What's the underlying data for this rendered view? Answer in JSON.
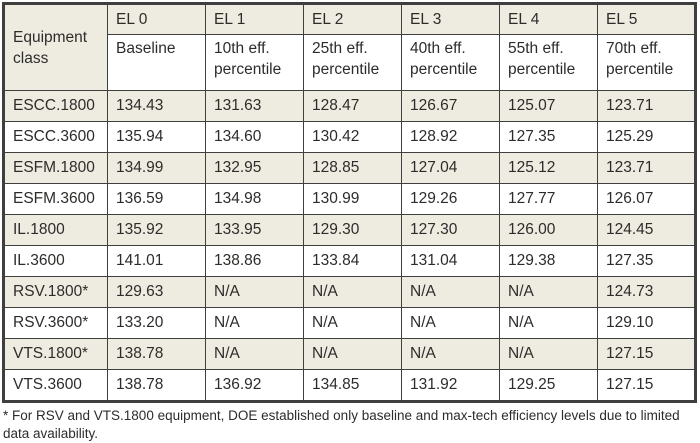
{
  "colors": {
    "row_shade": "#EEECE1",
    "border": "#3F3F3F",
    "text": "#2D2C2A",
    "background": "#FFFFFF"
  },
  "table": {
    "corner_header": "Equipment class",
    "columns": [
      {
        "el": "EL 0",
        "sub": "Baseline"
      },
      {
        "el": "EL 1",
        "sub": "10th eff. percentile"
      },
      {
        "el": "EL 2",
        "sub": "25th eff. percentile"
      },
      {
        "el": "EL 3",
        "sub": "40th eff. percentile"
      },
      {
        "el": "EL 4",
        "sub": "55th eff. percentile"
      },
      {
        "el": "EL 5",
        "sub": "70th eff. percentile"
      }
    ],
    "rows": [
      {
        "equipment_class": "ESCC.1800",
        "values": [
          "134.43",
          "131.63",
          "128.47",
          "126.67",
          "125.07",
          "123.71"
        ]
      },
      {
        "equipment_class": "ESCC.3600",
        "values": [
          "135.94",
          "134.60",
          "130.42",
          "128.92",
          "127.35",
          "125.29"
        ]
      },
      {
        "equipment_class": "ESFM.1800",
        "values": [
          "134.99",
          "132.95",
          "128.85",
          "127.04",
          "125.12",
          "123.71"
        ]
      },
      {
        "equipment_class": "ESFM.3600",
        "values": [
          "136.59",
          "134.98",
          "130.99",
          "129.26",
          "127.77",
          "126.07"
        ]
      },
      {
        "equipment_class": "IL.1800",
        "values": [
          "135.92",
          "133.95",
          "129.30",
          "127.30",
          "126.00",
          "124.45"
        ]
      },
      {
        "equipment_class": "IL.3600",
        "values": [
          "141.01",
          "138.86",
          "133.84",
          "131.04",
          "129.38",
          "127.35"
        ]
      },
      {
        "equipment_class": "RSV.1800*",
        "values": [
          "129.63",
          "N/A",
          "N/A",
          "N/A",
          "N/A",
          "124.73"
        ]
      },
      {
        "equipment_class": "RSV.3600*",
        "values": [
          "133.20",
          "N/A",
          "N/A",
          "N/A",
          "N/A",
          "129.10"
        ]
      },
      {
        "equipment_class": "VTS.1800*",
        "values": [
          "138.78",
          "N/A",
          "N/A",
          "N/A",
          "N/A",
          "127.15"
        ]
      },
      {
        "equipment_class": "VTS.3600",
        "values": [
          "138.78",
          "136.92",
          "134.85",
          "131.92",
          "129.25",
          "127.15"
        ]
      }
    ]
  },
  "footnote": "* For RSV and VTS.1800 equipment, DOE established only baseline and max-tech efficiency levels due to limited data availability."
}
